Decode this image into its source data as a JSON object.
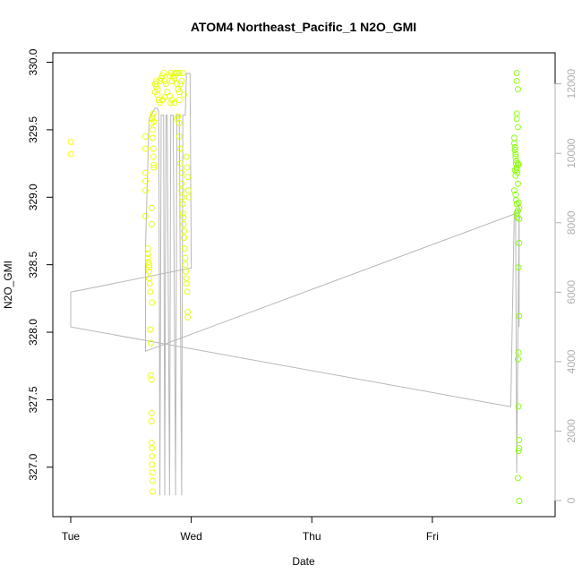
{
  "chart_data": {
    "type": "scatter",
    "title": "ATOM4 Northeast_Pacific_1 N2O_GMI",
    "xlabel": "Date",
    "ylabel": "N2O_GMI",
    "x_axis": {
      "range_days": [
        0.0,
        3.87
      ],
      "ticks": [
        {
          "label": "Tue",
          "value": 0
        },
        {
          "label": "Wed",
          "value": 1
        },
        {
          "label": "Thu",
          "value": 2
        },
        {
          "label": "Fri",
          "value": 3
        }
      ]
    },
    "y_axis": {
      "range": [
        326.7,
        330.05
      ],
      "ticks": [
        {
          "label": "327.0",
          "value": 327.0
        },
        {
          "label": "327.5",
          "value": 327.5
        },
        {
          "label": "328.0",
          "value": 328.0
        },
        {
          "label": "328.5",
          "value": 328.5
        },
        {
          "label": "329.0",
          "value": 329.0
        },
        {
          "label": "329.5",
          "value": 329.5
        },
        {
          "label": "330.0",
          "value": 330.0
        }
      ]
    },
    "y2_axis": {
      "range": [
        -300,
        12800
      ],
      "ticks": [
        {
          "label": "0",
          "value": 0
        },
        {
          "label": "2000",
          "value": 2000
        },
        {
          "label": "4000",
          "value": 4000
        },
        {
          "label": "6000",
          "value": 6000
        },
        {
          "label": "8000",
          "value": 8000
        },
        {
          "label": "10000",
          "value": 10000
        },
        {
          "label": "12000",
          "value": 12000
        }
      ]
    },
    "grid": false,
    "colors": {
      "low": "#ffff00",
      "high": "#80ff00",
      "altitude_line": "#b8b8b8",
      "right_axis": "#b0b0b0"
    },
    "series": [
      {
        "kind": "points",
        "points": [
          [
            0.0,
            329.41
          ],
          [
            0.0,
            329.32
          ],
          [
            0.62,
            329.45
          ],
          [
            0.62,
            329.36
          ],
          [
            0.62,
            329.18
          ],
          [
            0.62,
            329.12
          ],
          [
            0.62,
            329.05
          ],
          [
            0.62,
            328.86
          ],
          [
            0.64,
            328.62
          ],
          [
            0.64,
            328.58
          ],
          [
            0.64,
            328.55
          ],
          [
            0.645,
            328.52
          ],
          [
            0.65,
            328.5
          ],
          [
            0.65,
            328.48
          ],
          [
            0.65,
            328.45
          ],
          [
            0.65,
            328.4
          ],
          [
            0.655,
            328.36
          ],
          [
            0.66,
            328.3
          ],
          [
            0.66,
            328.02
          ],
          [
            0.665,
            327.92
          ],
          [
            0.665,
            327.68
          ],
          [
            0.67,
            327.65
          ],
          [
            0.67,
            327.4
          ],
          [
            0.67,
            327.34
          ],
          [
            0.67,
            327.18
          ],
          [
            0.675,
            327.14
          ],
          [
            0.675,
            327.08
          ],
          [
            0.675,
            327.02
          ],
          [
            0.68,
            326.96
          ],
          [
            0.68,
            326.9
          ],
          [
            0.68,
            326.82
          ],
          [
            0.67,
            328.92
          ],
          [
            0.67,
            328.8
          ],
          [
            0.675,
            328.22
          ],
          [
            0.68,
            329.5
          ],
          [
            0.68,
            329.44
          ],
          [
            0.685,
            329.36
          ],
          [
            0.685,
            329.3
          ],
          [
            0.69,
            329.24
          ],
          [
            0.69,
            329.22
          ],
          [
            0.67,
            329.55
          ],
          [
            0.675,
            329.58
          ],
          [
            0.68,
            329.6
          ],
          [
            0.685,
            329.62
          ],
          [
            0.69,
            329.56
          ],
          [
            0.7,
            329.78
          ],
          [
            0.7,
            329.84
          ],
          [
            0.71,
            329.86
          ],
          [
            0.71,
            329.82
          ],
          [
            0.72,
            329.8
          ],
          [
            0.72,
            329.76
          ],
          [
            0.73,
            329.72
          ],
          [
            0.74,
            329.86
          ],
          [
            0.75,
            329.88
          ],
          [
            0.76,
            329.9
          ],
          [
            0.77,
            329.92
          ],
          [
            0.78,
            329.86
          ],
          [
            0.79,
            329.84
          ],
          [
            0.8,
            329.78
          ],
          [
            0.82,
            329.75
          ],
          [
            0.84,
            329.72
          ],
          [
            0.85,
            329.9
          ],
          [
            0.86,
            329.88
          ],
          [
            0.87,
            329.92
          ],
          [
            0.88,
            329.84
          ],
          [
            0.89,
            329.8
          ],
          [
            0.9,
            329.78
          ],
          [
            0.91,
            329.84
          ],
          [
            0.92,
            329.86
          ],
          [
            0.93,
            329.92
          ],
          [
            0.94,
            329.76
          ],
          [
            0.74,
            329.7
          ],
          [
            0.76,
            329.72
          ],
          [
            0.78,
            329.74
          ],
          [
            0.83,
            329.7
          ],
          [
            0.86,
            329.7
          ],
          [
            0.9,
            329.72
          ],
          [
            0.82,
            329.9
          ],
          [
            0.83,
            329.92
          ],
          [
            0.84,
            329.86
          ],
          [
            0.88,
            329.92
          ],
          [
            0.9,
            329.92
          ],
          [
            0.88,
            329.58
          ],
          [
            0.89,
            329.6
          ],
          [
            0.9,
            329.55
          ],
          [
            0.9,
            329.45
          ],
          [
            0.91,
            329.36
          ],
          [
            0.91,
            329.25
          ],
          [
            0.92,
            329.18
          ],
          [
            0.92,
            329.1
          ],
          [
            0.92,
            329.05
          ],
          [
            0.925,
            329.0
          ],
          [
            0.93,
            328.95
          ],
          [
            0.93,
            328.88
          ],
          [
            0.935,
            328.85
          ],
          [
            0.935,
            328.8
          ],
          [
            0.94,
            328.75
          ],
          [
            0.94,
            328.7
          ],
          [
            0.945,
            328.62
          ],
          [
            0.95,
            328.55
          ],
          [
            0.95,
            328.5
          ],
          [
            0.955,
            328.45
          ],
          [
            0.96,
            328.4
          ],
          [
            0.96,
            328.36
          ],
          [
            0.965,
            328.3
          ],
          [
            0.97,
            328.15
          ],
          [
            0.97,
            328.11
          ],
          [
            0.96,
            329.3
          ],
          [
            0.965,
            329.22
          ],
          [
            0.97,
            329.15
          ],
          [
            0.975,
            329.05
          ],
          [
            0.98,
            329.0
          ],
          [
            3.7,
            329.92
          ],
          [
            3.7,
            329.86
          ],
          [
            3.71,
            329.8
          ],
          [
            3.7,
            329.62
          ],
          [
            3.7,
            329.58
          ],
          [
            3.71,
            329.52
          ],
          [
            3.68,
            329.44
          ],
          [
            3.68,
            329.4
          ],
          [
            3.685,
            329.37
          ],
          [
            3.685,
            329.35
          ],
          [
            3.69,
            329.32
          ],
          [
            3.69,
            329.3
          ],
          [
            3.695,
            329.27
          ],
          [
            3.695,
            329.25
          ],
          [
            3.7,
            329.22
          ],
          [
            3.7,
            329.2
          ],
          [
            3.705,
            329.18
          ],
          [
            3.71,
            329.25
          ],
          [
            3.715,
            329.24
          ],
          [
            3.68,
            329.05
          ],
          [
            3.69,
            329.02
          ],
          [
            3.695,
            328.98
          ],
          [
            3.7,
            328.95
          ],
          [
            3.7,
            328.88
          ],
          [
            3.705,
            328.85
          ],
          [
            3.71,
            328.9
          ],
          [
            3.715,
            328.96
          ],
          [
            3.72,
            328.92
          ],
          [
            3.72,
            328.84
          ],
          [
            3.72,
            328.66
          ],
          [
            3.715,
            328.48
          ],
          [
            3.72,
            328.12
          ],
          [
            3.715,
            327.85
          ],
          [
            3.71,
            327.8
          ],
          [
            3.715,
            327.45
          ],
          [
            3.72,
            327.2
          ],
          [
            3.72,
            327.14
          ],
          [
            3.715,
            327.12
          ],
          [
            3.71,
            326.92
          ],
          [
            3.72,
            326.75
          ],
          [
            3.71,
            329.1
          ],
          [
            3.69,
            329.16
          ],
          [
            3.685,
            329.2
          ]
        ]
      },
      {
        "kind": "altitude_line",
        "axis": "right",
        "points": [
          [
            0.0,
            6000
          ],
          [
            0.0,
            5000
          ],
          [
            3.65,
            2700
          ],
          [
            3.68,
            8300
          ],
          [
            3.69,
            8400
          ],
          [
            3.7,
            800
          ],
          [
            3.72,
            8600
          ],
          [
            3.72,
            5000
          ],
          [
            3.72,
            8300
          ],
          [
            0.62,
            4300
          ],
          [
            0.62,
            7300
          ],
          [
            0.65,
            11000
          ],
          [
            0.7,
            11300
          ],
          [
            0.72,
            11300
          ],
          [
            0.73,
            11200
          ],
          [
            0.74,
            150
          ],
          [
            0.75,
            11100
          ],
          [
            0.77,
            11100
          ],
          [
            0.78,
            150
          ],
          [
            0.79,
            11100
          ],
          [
            0.8,
            11100
          ],
          [
            0.82,
            150
          ],
          [
            0.83,
            11100
          ],
          [
            0.85,
            11100
          ],
          [
            0.87,
            150
          ],
          [
            0.88,
            11100
          ],
          [
            0.9,
            11100
          ],
          [
            0.92,
            150
          ],
          [
            0.93,
            11100
          ],
          [
            0.95,
            11100
          ],
          [
            0.96,
            12300
          ],
          [
            0.97,
            12300
          ],
          [
            0.99,
            12300
          ],
          [
            1.0,
            6700
          ],
          [
            0.0,
            6000
          ]
        ]
      }
    ]
  }
}
